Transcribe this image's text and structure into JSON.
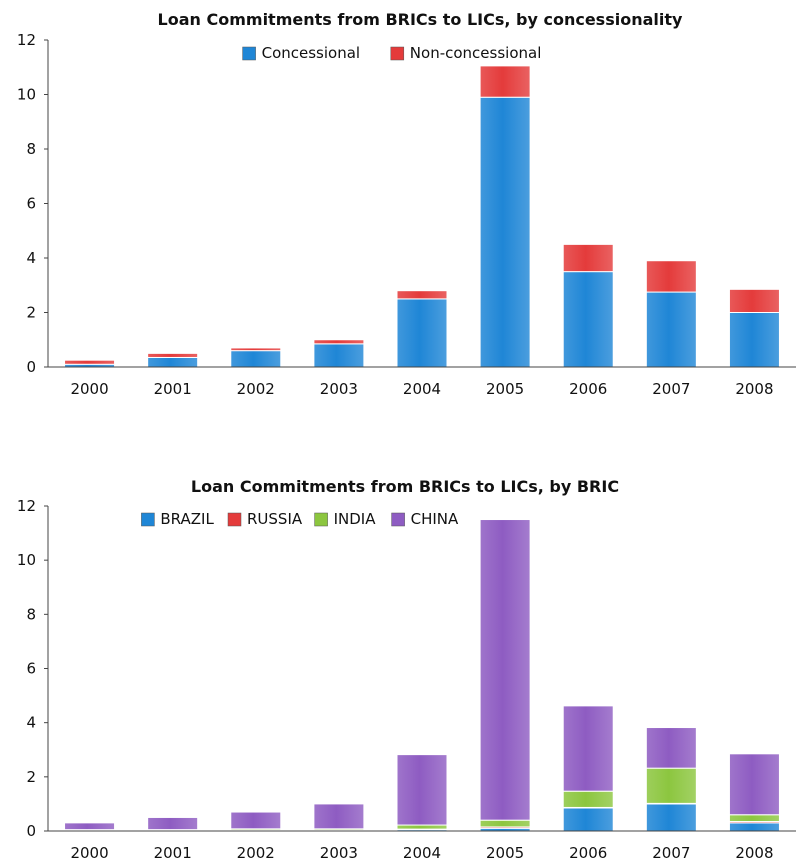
{
  "chart_data": [
    {
      "type": "bar",
      "stacked": true,
      "title": "Loan Commitments from BRICs to LICs, by concessionality",
      "categories": [
        "2000",
        "2001",
        "2002",
        "2003",
        "2004",
        "2005",
        "2006",
        "2007",
        "2008"
      ],
      "series": [
        {
          "name": "Concessional",
          "color": "#1f86d6",
          "values": [
            0.1,
            0.35,
            0.6,
            0.85,
            2.5,
            9.9,
            3.5,
            2.75,
            2.0
          ]
        },
        {
          "name": "Non-concessional",
          "color": "#e43b3b",
          "values": [
            0.15,
            0.15,
            0.1,
            0.15,
            0.3,
            1.15,
            1.0,
            1.15,
            0.85
          ]
        }
      ],
      "ylim": [
        0,
        12
      ],
      "yticks": [
        0,
        2,
        4,
        6,
        8,
        10,
        12
      ],
      "legend": "top-center",
      "grid": false
    },
    {
      "type": "bar",
      "stacked": true,
      "title": "Loan Commitments from BRICs to LICs, by BRIC",
      "categories": [
        "2000",
        "2001",
        "2002",
        "2003",
        "2004",
        "2005",
        "2006",
        "2007",
        "2008"
      ],
      "series": [
        {
          "name": "BRAZIL",
          "color": "#1f86d6",
          "values": [
            0.02,
            0.02,
            0.02,
            0.02,
            0.05,
            0.1,
            0.85,
            1.0,
            0.3
          ]
        },
        {
          "name": "RUSSIA",
          "color": "#e43b3b",
          "values": [
            0.01,
            0.01,
            0.01,
            0.01,
            0.02,
            0.05,
            0.02,
            0.02,
            0.05
          ]
        },
        {
          "name": "INDIA",
          "color": "#8cc63f",
          "values": [
            0.02,
            0.02,
            0.05,
            0.05,
            0.15,
            0.25,
            0.6,
            1.3,
            0.25
          ]
        },
        {
          "name": "CHINA",
          "color": "#8e5cc2",
          "values": [
            0.25,
            0.45,
            0.62,
            0.92,
            2.6,
            11.1,
            3.15,
            1.5,
            2.25
          ]
        }
      ],
      "ylim": [
        0,
        12
      ],
      "yticks": [
        0,
        2,
        4,
        6,
        8,
        10,
        12
      ],
      "legend": "top-center",
      "grid": false
    }
  ]
}
